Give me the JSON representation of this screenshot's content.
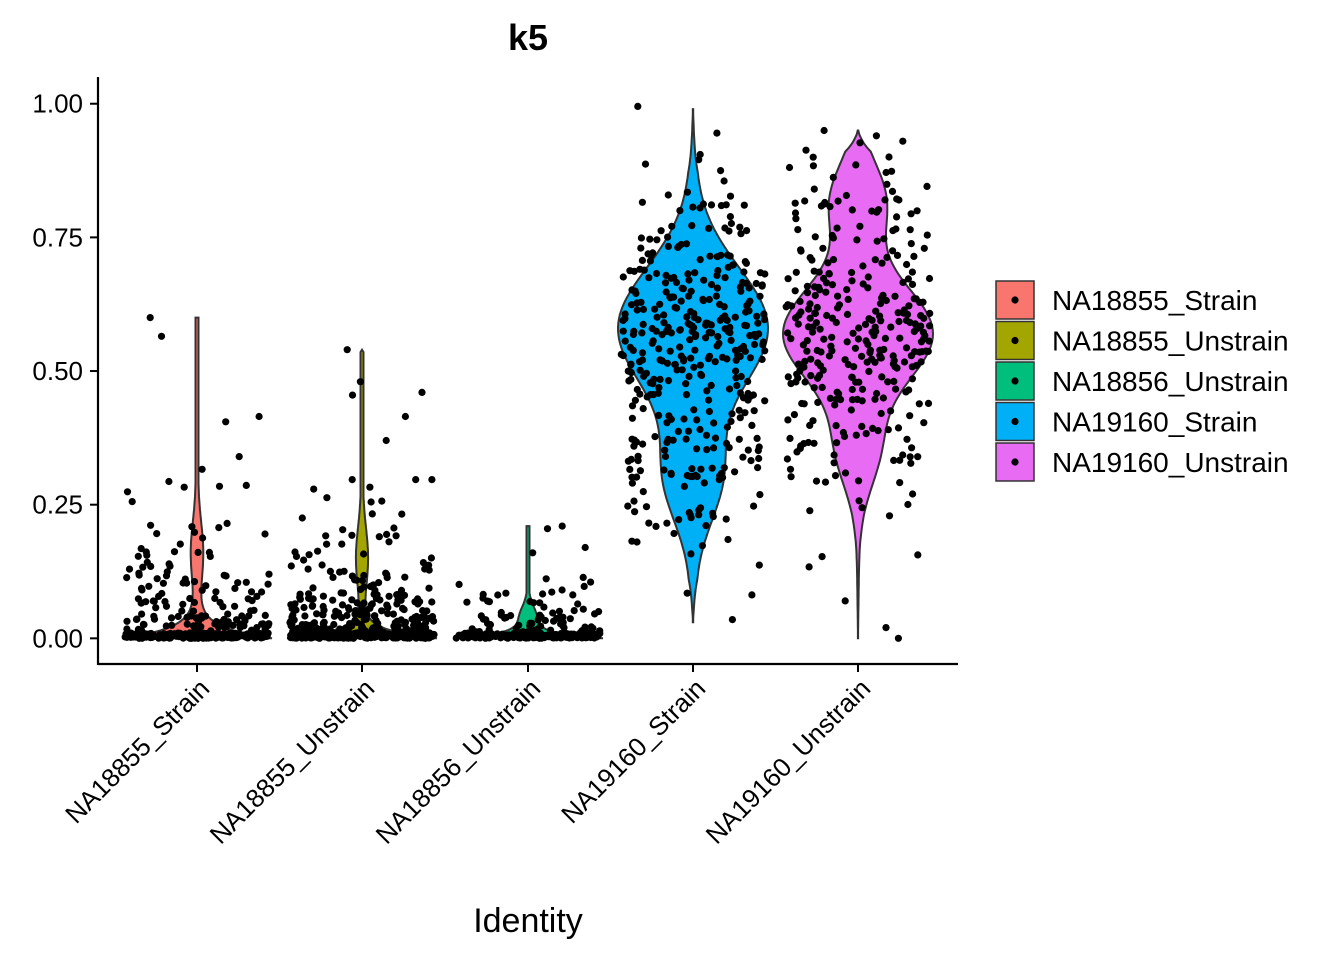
{
  "chart_data": {
    "type": "violin",
    "title": "k5",
    "xlabel": "Identity",
    "ylabel": "",
    "ylim": [
      -0.048,
      1.05
    ],
    "yticks": [
      0.0,
      0.25,
      0.5,
      0.75,
      1.0
    ],
    "ytick_labels": [
      "0.00",
      "0.25",
      "0.50",
      "0.75",
      "1.00"
    ],
    "categories": [
      "NA18855_Strain",
      "NA18855_Unstrain",
      "NA18856_Unstrain",
      "NA19160_Strain",
      "NA19160_Unstrain"
    ],
    "colors": [
      "#F8766D",
      "#A3A500",
      "#00BF7D",
      "#00B0F6",
      "#E76BF3"
    ],
    "legend_position": "right",
    "grid": false,
    "series": [
      {
        "name": "NA18855_Strain",
        "min": 0.0,
        "max": 0.6,
        "median": 0.03,
        "n_points": 350,
        "outliers": [
          0.6,
          0.565,
          0.415,
          0.405,
          0.34
        ]
      },
      {
        "name": "NA18855_Unstrain",
        "min": 0.0,
        "max": 0.54,
        "median": 0.02,
        "n_points": 600,
        "outliers": [
          0.54,
          0.48,
          0.46,
          0.455,
          0.415,
          0.37
        ]
      },
      {
        "name": "NA18856_Unstrain",
        "min": 0.0,
        "max": 0.21,
        "median": 0.01,
        "n_points": 250,
        "outliers": [
          0.21,
          0.205,
          0.17,
          0.16
        ]
      },
      {
        "name": "NA19160_Strain",
        "min": 0.03,
        "max": 0.99,
        "median": 0.55,
        "n_points": 380,
        "outliers": [
          0.995,
          0.945,
          0.905,
          0.875,
          0.035
        ]
      },
      {
        "name": "NA19160_Unstrain",
        "min": 0.0,
        "max": 0.95,
        "median": 0.56,
        "n_points": 320,
        "outliers": [
          0.95,
          0.94,
          0.93,
          0.07,
          0.02,
          0.0
        ]
      }
    ]
  }
}
